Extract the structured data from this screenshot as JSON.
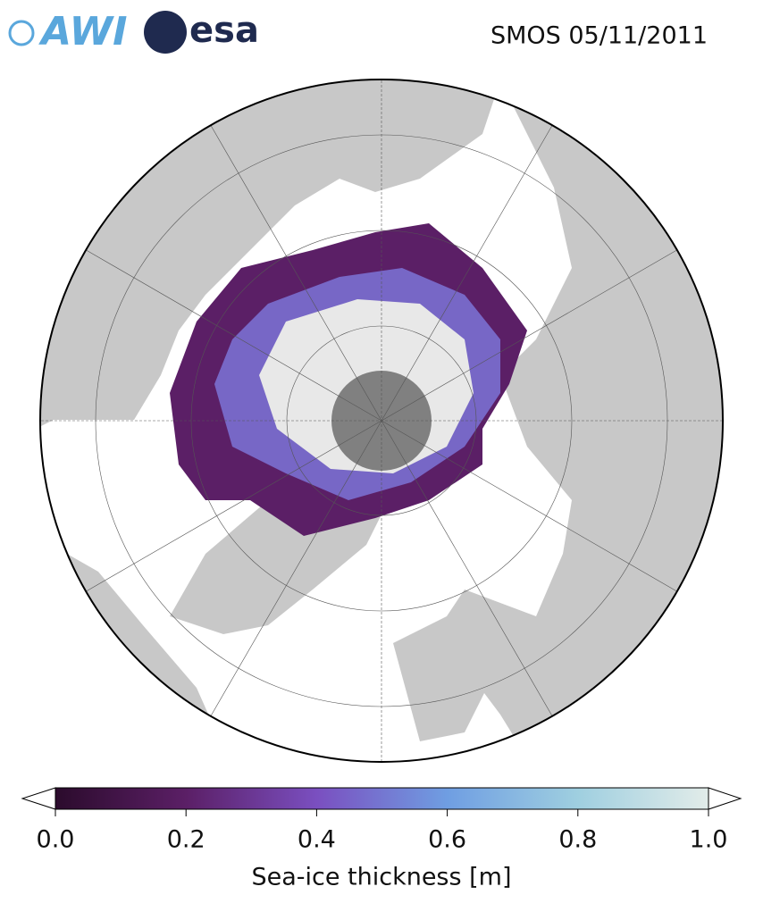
{
  "header": {
    "logos": [
      "AWI",
      "esa"
    ],
    "title": "SMOS 05/11/2011"
  },
  "colorbar": {
    "label": "Sea-ice thickness [m]",
    "lim": [
      0,
      1
    ],
    "ticks": [
      {
        "value": 0,
        "label": "0.0"
      },
      {
        "value": 0.2,
        "label": "0.2"
      },
      {
        "value": 0.4,
        "label": "0.4"
      },
      {
        "value": 0.6,
        "label": "0.6"
      },
      {
        "value": 0.8,
        "label": "0.8"
      },
      {
        "value": 1,
        "label": "1.0"
      }
    ],
    "colors": [
      "#2b0b2c",
      "#5b1f66",
      "#7a4fc0",
      "#6f9ee2",
      "#9fcfe0",
      "#e2ece9"
    ]
  }
}
